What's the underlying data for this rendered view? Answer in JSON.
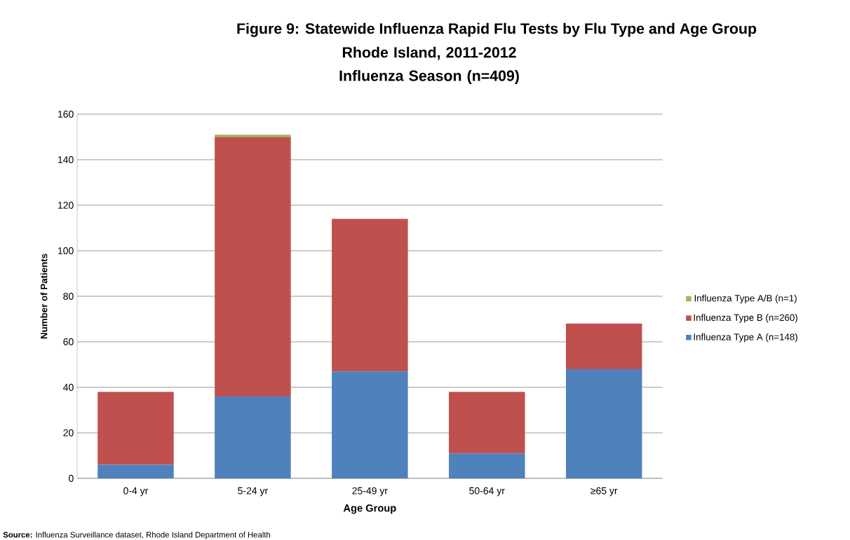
{
  "chart_data": {
    "type": "bar",
    "stacked": true,
    "title": "Figure 9: Statewide Influenza Rapid Flu Tests by Flu Type and Age Group",
    "subtitle": "Rhode Island, 2011-2012 Influenza Season (n=409)",
    "xlabel": "Age Group",
    "ylabel": "Number of Patients",
    "categories": [
      "0-4 yr",
      "5-24 yr",
      "25-49 yr",
      "50-64 yr",
      "≥65 yr"
    ],
    "series": [
      {
        "name": "Influenza Type A (n=148)",
        "color": "#4f81bd",
        "values": [
          6,
          36,
          47,
          11,
          48
        ]
      },
      {
        "name": "Influenza Type B (n=260)",
        "color": "#c0504d",
        "values": [
          32,
          114,
          67,
          27,
          20
        ]
      },
      {
        "name": "Influenza Type A/B (n=1)",
        "color": "#9bbb59",
        "values": [
          0,
          1,
          0,
          0,
          0
        ]
      }
    ],
    "ylim": [
      0,
      160
    ],
    "yticks": [
      0,
      20,
      40,
      60,
      80,
      100,
      120,
      140,
      160
    ],
    "grid": "y",
    "legend": "right",
    "annotations": [
      "**Source:** Influenza Surveillance dataset, Rhode Island Department of Health"
    ]
  }
}
